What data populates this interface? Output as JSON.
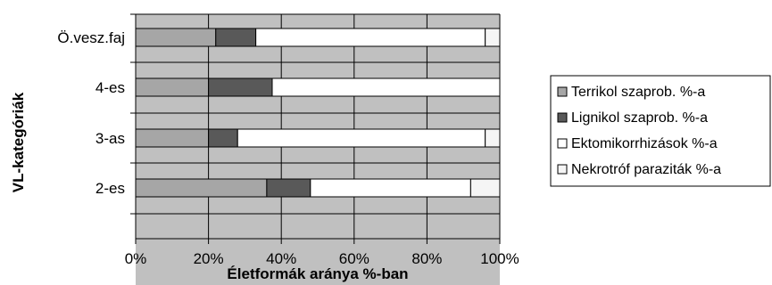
{
  "chart_data": {
    "type": "bar",
    "orientation": "horizontal",
    "stacked": "percent",
    "categories": [
      "Ö.vesz.faj",
      "4-es",
      "3-as",
      "2-es"
    ],
    "series": [
      {
        "name": "Terrikol szaprob. %-a",
        "values": [
          22,
          20,
          20,
          36
        ],
        "color": "#a6a6a6"
      },
      {
        "name": "Lignikol szaprob. %-a",
        "values": [
          11,
          17.5,
          8,
          12
        ],
        "color": "#595959"
      },
      {
        "name": "Ektomikorrhizások %-a",
        "values": [
          63,
          62.5,
          68,
          44
        ],
        "color": "#ffffff"
      },
      {
        "name": "Nekrotróf paraziták %-a",
        "values": [
          4,
          0,
          4,
          8
        ],
        "color": "#f5f5f5"
      }
    ],
    "xlim": [
      0,
      100
    ],
    "xticks": [
      "0%",
      "20%",
      "40%",
      "60%",
      "80%",
      "100%"
    ],
    "xlabel": "Életformák aránya %-ban",
    "ylabel": "VL-kategóriák",
    "plot_background": "#c0c0c0",
    "grid": true,
    "legend_position": "right"
  }
}
